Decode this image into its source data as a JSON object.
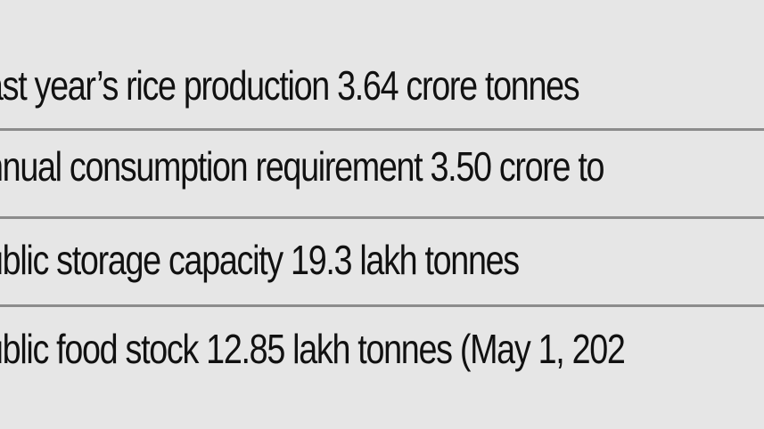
{
  "facts": [
    {
      "text": "ast year’s rice production 3.64 crore tonnes"
    },
    {
      "text": "nnual consumption requirement 3.50 crore to"
    },
    {
      "text": "ublic storage capacity 19.3 lakh tonnes"
    },
    {
      "text": "ublic food stock 12.85 lakh tonnes (May 1, 202"
    }
  ]
}
